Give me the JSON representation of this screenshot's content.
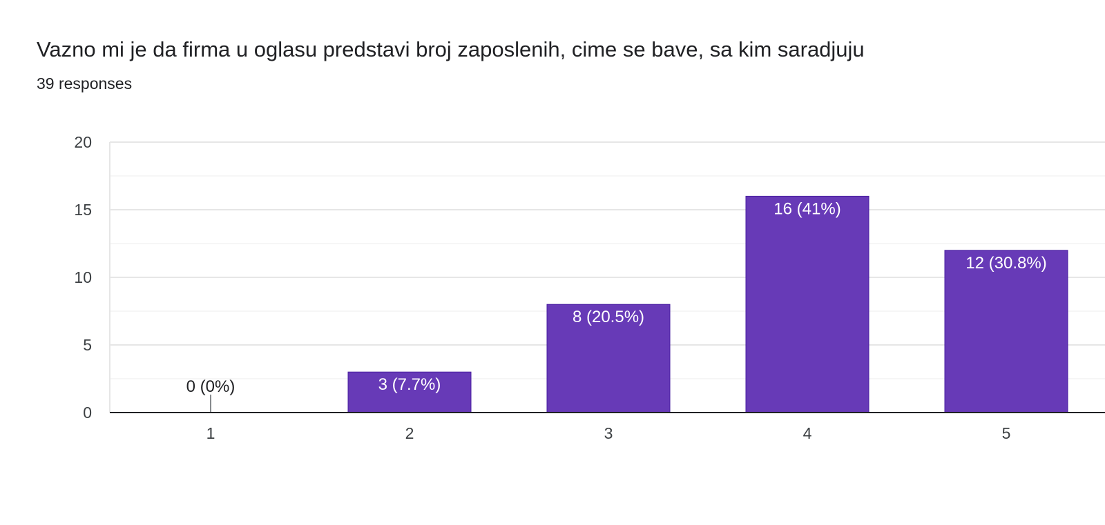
{
  "header": {
    "title": "Vazno mi je da firma u oglasu predstavi broj zaposlenih, cime se bave, sa kim saradjuju",
    "responses": "39 responses"
  },
  "chart_data": {
    "type": "bar",
    "categories": [
      "1",
      "2",
      "3",
      "4",
      "5"
    ],
    "values": [
      0,
      3,
      8,
      16,
      12
    ],
    "data_labels": [
      "0 (0%)",
      "3 (7.7%)",
      "8 (20.5%)",
      "16 (41%)",
      "12 (30.8%)"
    ],
    "ylim": [
      0,
      20
    ],
    "yticks": [
      0,
      5,
      10,
      15,
      20
    ],
    "grid": true,
    "bar_color": "#673ab7",
    "label_color_inside": "#ffffff",
    "label_color_outside": "#202124",
    "title": "Vazno mi je da firma u oglasu predstavi broj zaposlenih, cime se bave, sa kim saradjuju",
    "xlabel": "",
    "ylabel": ""
  }
}
